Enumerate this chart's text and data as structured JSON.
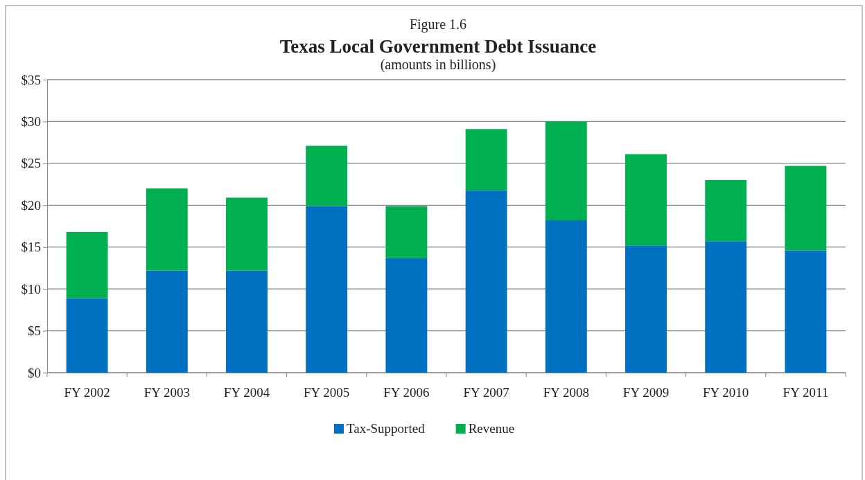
{
  "chart_data": {
    "type": "bar",
    "title": "Texas Local Government Debt Issuance",
    "subtitle": "(amounts in billions)",
    "annotations": [
      "Figure 1.6"
    ],
    "categories": [
      "FY 2002",
      "FY 2003",
      "FY 2004",
      "FY 2005",
      "FY 2006",
      "FY 2007",
      "FY 2008",
      "FY 2009",
      "FY 2010",
      "FY 2011"
    ],
    "stacked": true,
    "series": [
      {
        "name": "Tax-Supported",
        "color": "#0070c0",
        "values": [
          8.9,
          12.2,
          12.2,
          19.9,
          13.7,
          21.8,
          18.2,
          15.2,
          15.7,
          14.6
        ]
      },
      {
        "name": "Revenue",
        "color": "#00b050",
        "values": [
          7.9,
          9.8,
          8.7,
          7.2,
          6.2,
          7.3,
          11.8,
          10.9,
          7.3,
          10.1
        ]
      }
    ],
    "ylim": [
      0,
      35
    ],
    "yticks": [
      {
        "value": 0,
        "label": "$0"
      },
      {
        "value": 5,
        "label": "$5"
      },
      {
        "value": 10,
        "label": "$10"
      },
      {
        "value": 15,
        "label": "$15"
      },
      {
        "value": 20,
        "label": "$20"
      },
      {
        "value": 25,
        "label": "$25"
      },
      {
        "value": 30,
        "label": "$30"
      },
      {
        "value": 35,
        "label": "$35"
      }
    ],
    "grid": "y",
    "legend": "bottom"
  }
}
